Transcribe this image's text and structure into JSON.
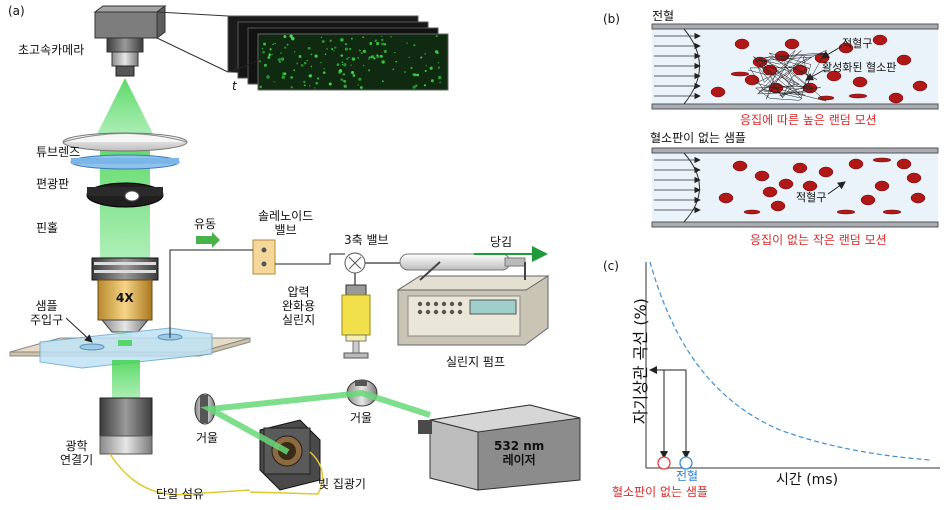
{
  "panels": {
    "a": "(a)",
    "b": "(b)",
    "c": "(c)"
  },
  "setup": {
    "camera": "초고속카메라",
    "time_symbol": "t",
    "tube_lens": "튜브렌즈",
    "polarizer": "편광판",
    "pinhole": "핀홀",
    "objective_mag": "4X",
    "inlet": [
      "샘플",
      "주입구"
    ],
    "flow": "유동",
    "solenoid": [
      "솔레노이드",
      "밸브"
    ],
    "valve3": "3축 밸브",
    "pull": "당김",
    "pressure_syringe": [
      "압력",
      "완화용",
      "실린지"
    ],
    "syringe_pump": "실린지 펌프",
    "optical_coupler": [
      "광학",
      "연결기"
    ],
    "mirror1": "거울",
    "mirror2": "거울",
    "laser": [
      "532 nm",
      "레이저"
    ],
    "collector": "빛 집광기",
    "fiber": "단일 섬유"
  },
  "flow_panels": {
    "top_title": "전혈",
    "rbc_label_top": "적혈구",
    "platelet_label": "활성화된 혈소판",
    "top_caption": "응집에 따른 높은 랜덤 모션",
    "bottom_title": "혈소판이 없는 샘플",
    "rbc_label_bottom": "적혈구",
    "bottom_caption": "응집이 없는 작은 랜덤 모션"
  },
  "autocorr": {
    "ylabel": "자기상관 곡선 (%)",
    "xlabel": "시간 (ms)",
    "marker_whole": "전혈",
    "marker_no_platelet": "혈소판이 없는 샘플",
    "colors": {
      "curve": "#3b8fd9",
      "no_platelet": "#e04040",
      "whole": "#3b8fd9"
    }
  }
}
